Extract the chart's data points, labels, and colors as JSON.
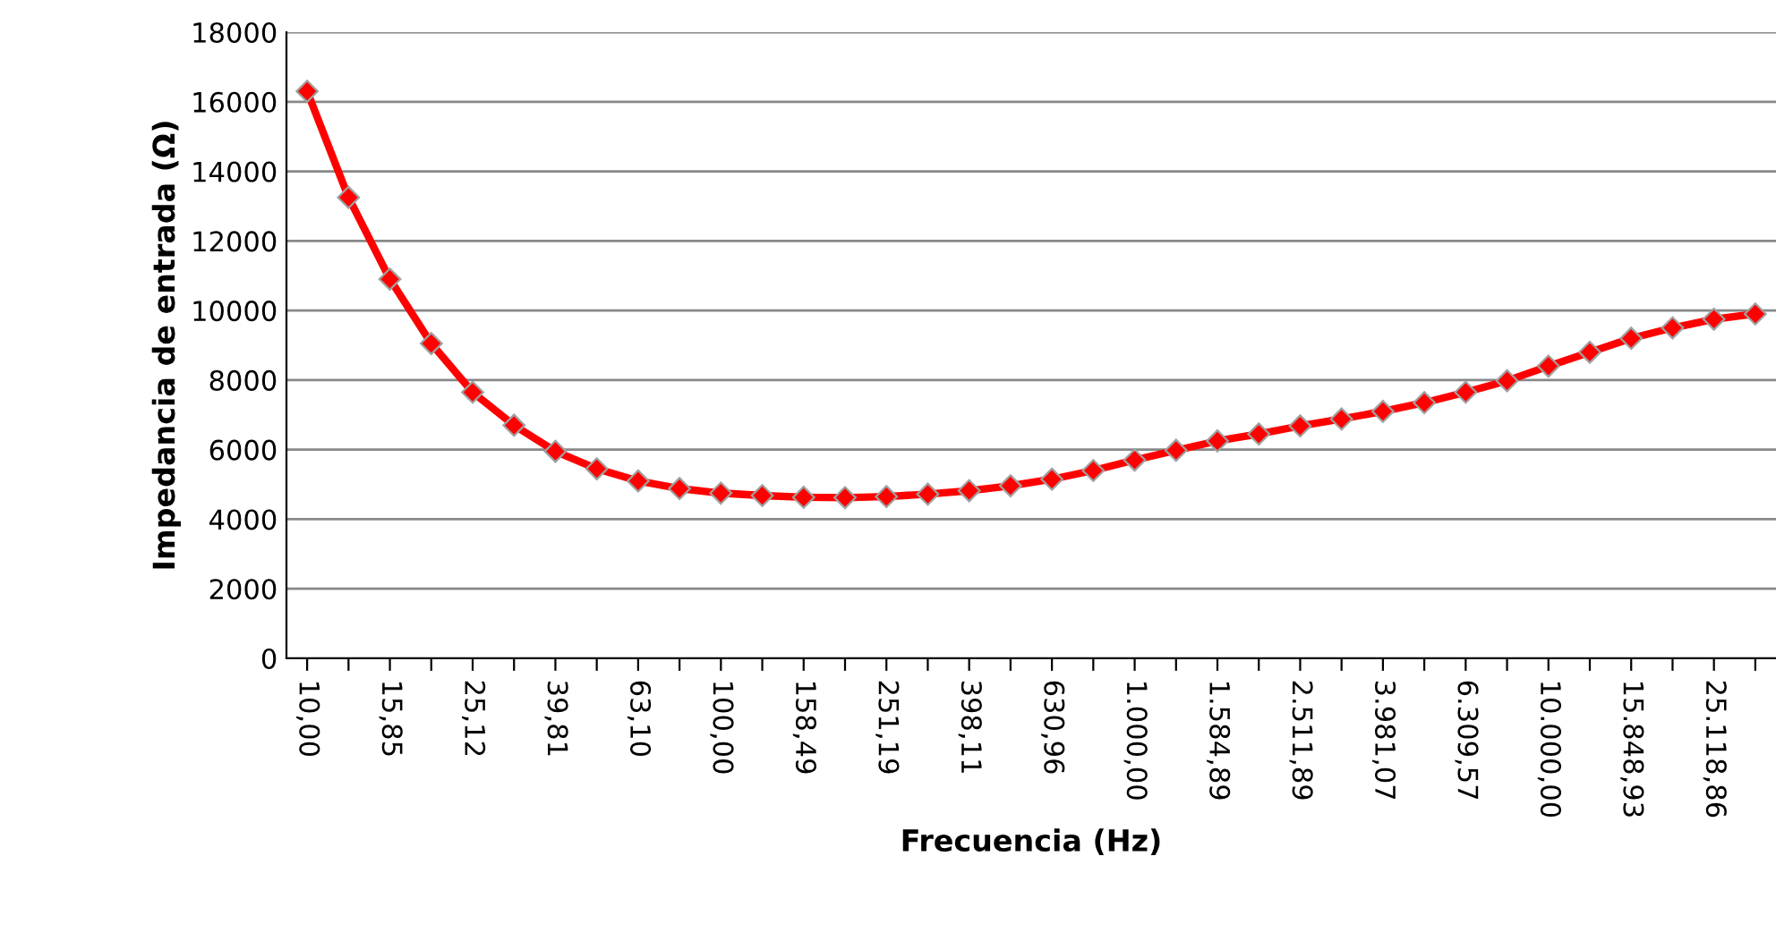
{
  "chart_data": {
    "type": "line",
    "xlabel": "Frecuencia (Hz)",
    "ylabel": "Impedancia de entrada (Ω)",
    "categories": [
      "10,00",
      null,
      "15,85",
      null,
      "25,12",
      null,
      "39,81",
      null,
      "63,10",
      null,
      "100,00",
      null,
      "158,49",
      null,
      "251,19",
      null,
      "398,11",
      null,
      "630,96",
      null,
      "1.000,00",
      null,
      "1.584,89",
      null,
      "2.511,89",
      null,
      "3.981,07",
      null,
      "6.309,57",
      null,
      "10.000,00",
      null,
      "15.848,93",
      null,
      "25.118,86",
      null
    ],
    "series": [
      {
        "color": "#ff0000",
        "values": [
          16300,
          13250,
          10900,
          9050,
          7650,
          6700,
          5950,
          5450,
          5100,
          4880,
          4750,
          4680,
          4630,
          4620,
          4650,
          4720,
          4820,
          4960,
          5150,
          5400,
          5700,
          5980,
          6250,
          6450,
          6680,
          6880,
          7100,
          7350,
          7650,
          7980,
          8400,
          8800,
          9200,
          9500,
          9750,
          9900
        ]
      }
    ],
    "ylim": [
      0,
      18000
    ],
    "yticks": [
      0,
      2000,
      4000,
      6000,
      8000,
      10000,
      12000,
      14000,
      16000,
      18000
    ],
    "grid": "y",
    "marker": "diamond",
    "line_style": "solid",
    "legend": false
  }
}
